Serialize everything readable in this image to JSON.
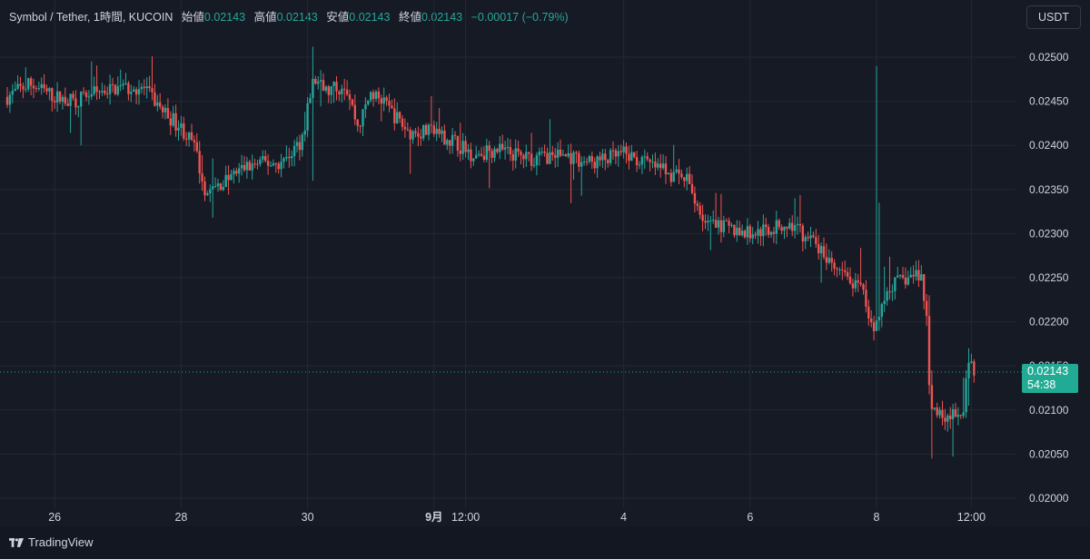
{
  "legend": {
    "symbol": "Symbol / Tether, 1時間, KUCOIN",
    "open_label": "始値",
    "open_value": "0.02143",
    "high_label": "高値",
    "high_value": "0.02143",
    "low_label": "安値",
    "low_value": "0.02143",
    "close_label": "終値",
    "close_value": "0.02143",
    "change": "−0.00017 (−0.79%)"
  },
  "currency_button": "USDT",
  "price_tag": {
    "price": "0.02143",
    "countdown": "54:38"
  },
  "footer": {
    "brand": "TradingView"
  },
  "colors": {
    "up": "#26a69a",
    "down": "#ef5350",
    "background": "#161a25",
    "grid": "#242832",
    "tag": "#22ab94"
  },
  "chart_data": {
    "type": "candlestick",
    "interval": "1時間",
    "ylim": [
      0.02,
      0.0251
    ],
    "y_ticks": [
      "0.02000",
      "0.02050",
      "0.02100",
      "0.02150",
      "0.02200",
      "0.02250",
      "0.02300",
      "0.02350",
      "0.02400",
      "0.02450",
      "0.02500"
    ],
    "x_ticks": [
      {
        "label": "26",
        "day": 1.0
      },
      {
        "label": "28",
        "day": 3.0
      },
      {
        "label": "30",
        "day": 5.0
      },
      {
        "label": "9月",
        "day": 7.0,
        "bold": true
      },
      {
        "label": "12:00",
        "day": 7.5
      },
      {
        "label": "4",
        "day": 10.0
      },
      {
        "label": "6",
        "day": 12.0
      },
      {
        "label": "8",
        "day": 14.0
      },
      {
        "label": "12:00",
        "day": 15.5
      }
    ],
    "x_range_days": [
      0.2,
      15.6
    ],
    "current_price": 0.02143,
    "keypoints": [
      [
        0.25,
        0.02455
      ],
      [
        0.6,
        0.0247
      ],
      [
        1.0,
        0.02455
      ],
      [
        1.3,
        0.0245
      ],
      [
        1.6,
        0.0246
      ],
      [
        2.0,
        0.02465
      ],
      [
        2.4,
        0.02465
      ],
      [
        2.7,
        0.0244
      ],
      [
        3.0,
        0.0242
      ],
      [
        3.2,
        0.024
      ],
      [
        3.4,
        0.02345
      ],
      [
        3.7,
        0.0236
      ],
      [
        4.0,
        0.02375
      ],
      [
        4.3,
        0.0238
      ],
      [
        4.6,
        0.0238
      ],
      [
        4.9,
        0.02405
      ],
      [
        5.1,
        0.02475
      ],
      [
        5.3,
        0.0246
      ],
      [
        5.6,
        0.0247
      ],
      [
        5.8,
        0.0242
      ],
      [
        6.0,
        0.0246
      ],
      [
        6.3,
        0.0244
      ],
      [
        6.6,
        0.02415
      ],
      [
        7.0,
        0.02415
      ],
      [
        7.3,
        0.02405
      ],
      [
        7.6,
        0.0239
      ],
      [
        8.0,
        0.02395
      ],
      [
        8.5,
        0.02385
      ],
      [
        9.0,
        0.0239
      ],
      [
        9.5,
        0.0238
      ],
      [
        10.0,
        0.0239
      ],
      [
        10.5,
        0.02375
      ],
      [
        11.0,
        0.0236
      ],
      [
        11.3,
        0.0231
      ],
      [
        11.7,
        0.02305
      ],
      [
        12.0,
        0.023
      ],
      [
        12.3,
        0.02305
      ],
      [
        12.6,
        0.0231
      ],
      [
        13.0,
        0.0229
      ],
      [
        13.3,
        0.0226
      ],
      [
        13.6,
        0.02245
      ],
      [
        13.8,
        0.0223
      ],
      [
        13.9,
        0.022
      ],
      [
        14.0,
        0.02195
      ],
      [
        14.2,
        0.0224
      ],
      [
        14.5,
        0.0225
      ],
      [
        14.7,
        0.02255
      ],
      [
        14.8,
        0.022
      ],
      [
        14.85,
        0.021
      ],
      [
        15.0,
        0.02095
      ],
      [
        15.2,
        0.02095
      ],
      [
        15.35,
        0.0209
      ],
      [
        15.45,
        0.0215
      ],
      [
        15.55,
        0.02145
      ]
    ],
    "annotated_candles": [
      {
        "day": 5.1,
        "high": 0.02512,
        "low": 0.0236
      },
      {
        "day": 14.0,
        "high": 0.0249,
        "low": 0.0219
      },
      {
        "day": 14.03,
        "high": 0.02362,
        "low": 0.02195
      },
      {
        "day": 14.06,
        "high": 0.02335,
        "low": 0.0219
      },
      {
        "day": 14.87,
        "high": 0.02145,
        "low": 0.02045
      },
      {
        "day": 15.45,
        "high": 0.0217,
        "low": 0.02105
      }
    ]
  }
}
